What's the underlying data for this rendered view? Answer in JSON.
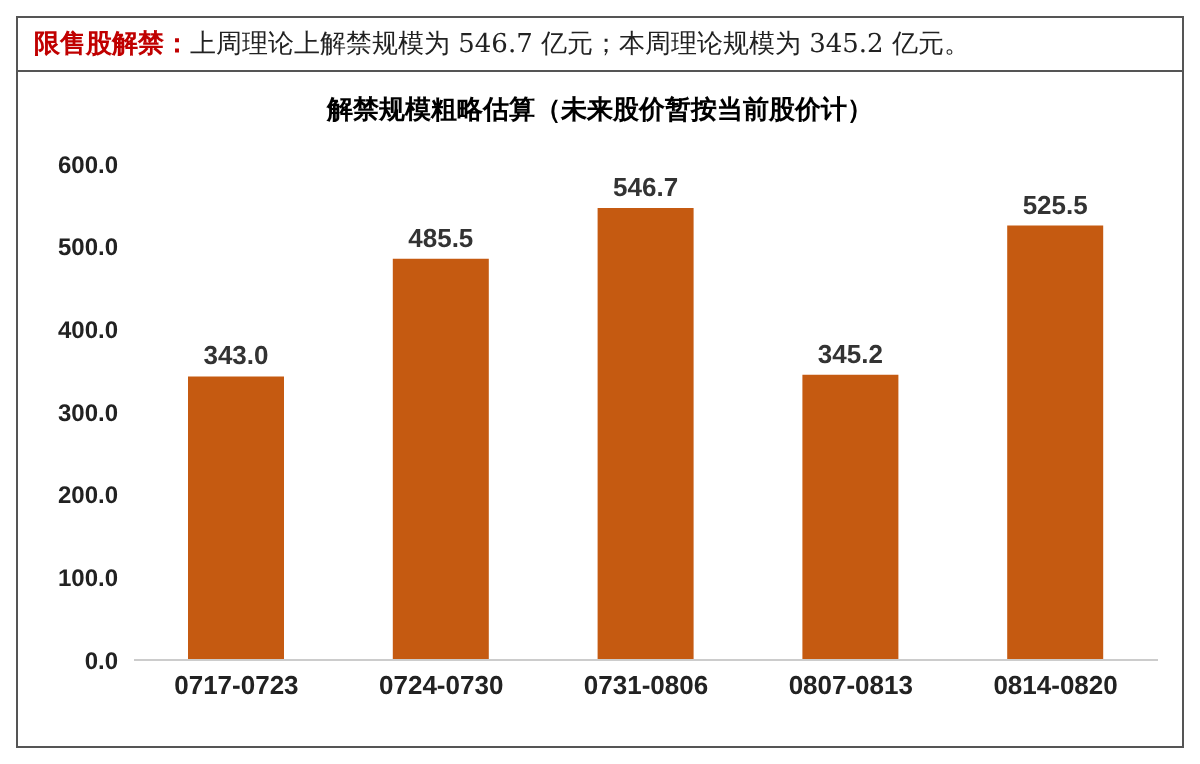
{
  "chart_data": {
    "type": "bar",
    "title": "解禁规模粗略估算（未来股价暂按当前股价计）",
    "annotations": [
      "限售股解禁：",
      "上周理论上解禁规模为 546.7 亿元；本周理论规模为 345.2 亿元。"
    ],
    "categories": [
      "0717-0723",
      "0724-0730",
      "0731-0806",
      "0807-0813",
      "0814-0820"
    ],
    "values": [
      343.0,
      485.5,
      546.7,
      345.2,
      525.5
    ],
    "value_labels": [
      "343.0",
      "485.5",
      "546.7",
      "345.2",
      "525.5"
    ],
    "color": "#c55a11",
    "ylim": [
      0,
      600
    ],
    "yticks": [
      {
        "value": 0,
        "label": "0.0"
      },
      {
        "value": 100,
        "label": "100.0"
      },
      {
        "value": 200,
        "label": "200.0"
      },
      {
        "value": 300,
        "label": "300.0"
      },
      {
        "value": 400,
        "label": "400.0"
      },
      {
        "value": 500,
        "label": "500.0"
      },
      {
        "value": 600,
        "label": "600.0"
      }
    ],
    "grid": false,
    "legend": false
  }
}
